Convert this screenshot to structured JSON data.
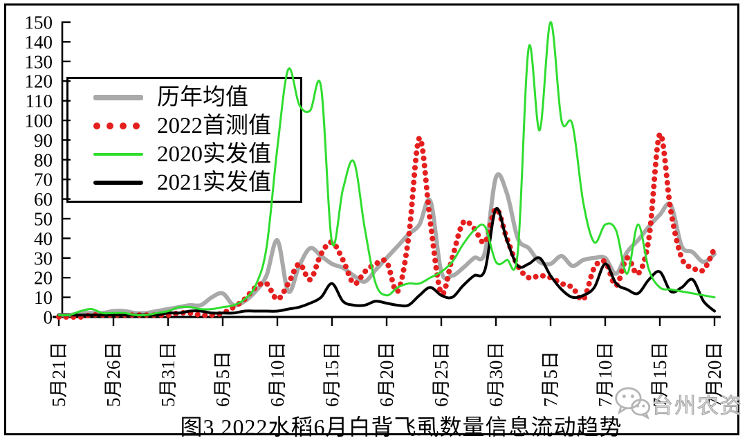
{
  "chart_data": {
    "type": "line",
    "title": "图3 2022水稻6月白背飞虱数量信息流动趋势",
    "ylim": [
      0,
      150
    ],
    "y_ticks": [
      0,
      10,
      20,
      30,
      40,
      50,
      60,
      70,
      80,
      90,
      100,
      110,
      120,
      130,
      140,
      150
    ],
    "grid": false,
    "legend_position": "upper-left",
    "x_unit": "日期 (每日一点)",
    "x_tick_labels": [
      "5月21日",
      "5月26日",
      "5月31日",
      "6月5日",
      "6月10日",
      "6月15日",
      "6月20日",
      "6月25日",
      "6月30日",
      "7月5日",
      "7月10日",
      "7月15日",
      "7月20日"
    ],
    "x_tick_positions": [
      0,
      5,
      10,
      15,
      20,
      25,
      30,
      35,
      40,
      45,
      50,
      55,
      60
    ],
    "points_per_series": 61,
    "series": [
      {
        "name": "历年均值",
        "color": "#a9a9a9",
        "line_style": "solid",
        "stroke_width": 6,
        "legend_bar_height": 8,
        "values": [
          1,
          1,
          2,
          2,
          2,
          3,
          3,
          2,
          2,
          3,
          4,
          5,
          6,
          6,
          10,
          12,
          6,
          8,
          13,
          21,
          39,
          13,
          26,
          35,
          31,
          27,
          25,
          21,
          18,
          24,
          30,
          36,
          42,
          47,
          59,
          23,
          21,
          25,
          30,
          33,
          71,
          63,
          40,
          35,
          28,
          27,
          31,
          26,
          29,
          30,
          30,
          22,
          33,
          39,
          46,
          52,
          57,
          36,
          33,
          28,
          32
        ]
      },
      {
        "name": "2022首测值",
        "color": "#e51e1e",
        "line_style": "dotted",
        "stroke_width": 8,
        "legend_bar_height": 10,
        "values": [
          0,
          0,
          0,
          1,
          1,
          1,
          1,
          1,
          1,
          1,
          1,
          2,
          2,
          1,
          1,
          2,
          5,
          9,
          15,
          17,
          9,
          17,
          27,
          19,
          32,
          38,
          29,
          17,
          23,
          27,
          28,
          13,
          40,
          91,
          48,
          12,
          30,
          48,
          45,
          38,
          55,
          40,
          26,
          20,
          21,
          20,
          17,
          15,
          9,
          25,
          28,
          16,
          30,
          22,
          40,
          93,
          54,
          30,
          25,
          24,
          35
        ]
      },
      {
        "name": "2020实发值",
        "color": "#2fdd2f",
        "line_style": "solid",
        "stroke_width": 3,
        "legend_bar_height": 4,
        "values": [
          1,
          1,
          3,
          4,
          2,
          2,
          2,
          1,
          1,
          2,
          3,
          5,
          5,
          4,
          4,
          5,
          6,
          9,
          16,
          35,
          86,
          126,
          108,
          105,
          117,
          38,
          65,
          79,
          45,
          17,
          11,
          15,
          17,
          17,
          20,
          23,
          28,
          37,
          44,
          46,
          28,
          29,
          33,
          137,
          95,
          150,
          100,
          98,
          58,
          38,
          47,
          44,
          22,
          47,
          24,
          15,
          14,
          13,
          12,
          11,
          10
        ]
      },
      {
        "name": "2021实发值",
        "color": "#000000",
        "line_style": "solid",
        "stroke_width": 4,
        "legend_bar_height": 6,
        "values": [
          1,
          1,
          1,
          1,
          1,
          1,
          1,
          1,
          1,
          1,
          2,
          2,
          3,
          3,
          2,
          2,
          2,
          3,
          3,
          3,
          3,
          4,
          5,
          7,
          10,
          17,
          8,
          6,
          6,
          8,
          7,
          6,
          6,
          11,
          15,
          11,
          10,
          16,
          21,
          24,
          55,
          39,
          26,
          27,
          30,
          21,
          14,
          10,
          11,
          15,
          27,
          17,
          14,
          12,
          19,
          23,
          13,
          15,
          19,
          8,
          3
        ]
      }
    ]
  },
  "watermark": {
    "text": "台州农资",
    "icon": "wechat-icon"
  }
}
